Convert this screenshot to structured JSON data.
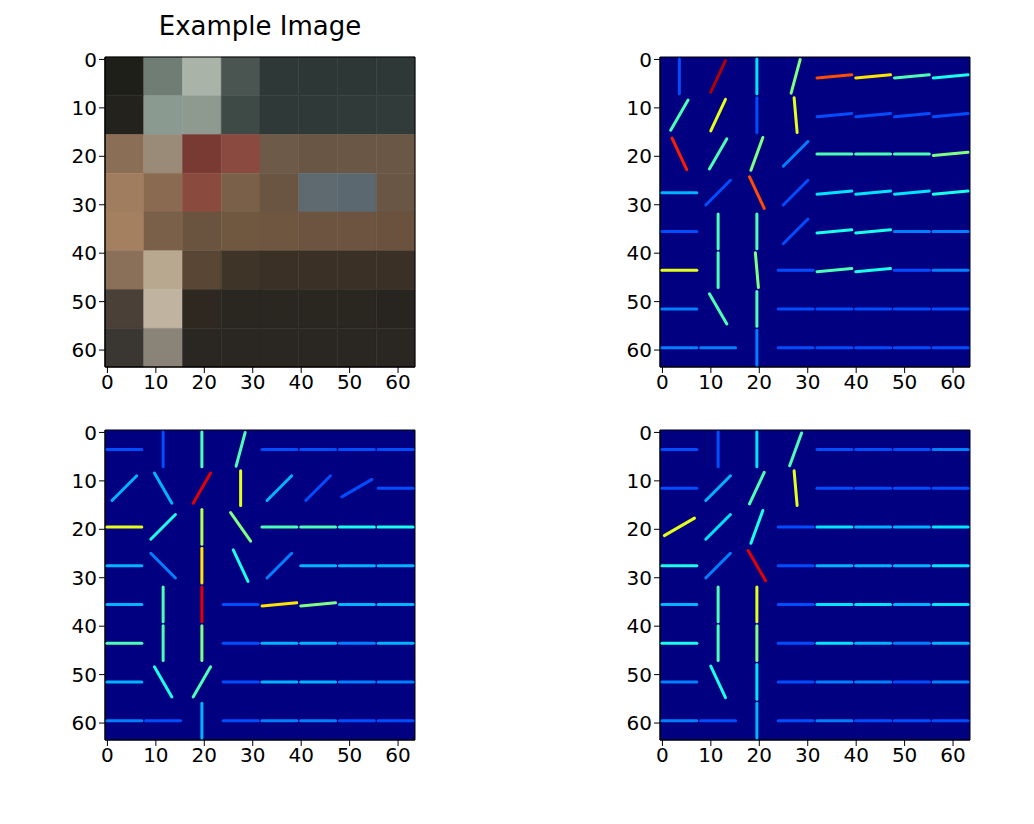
{
  "chart_data": [
    {
      "type": "image",
      "title": "Example Image",
      "xlim": [
        -0.5,
        63.5
      ],
      "ylim": [
        63.5,
        -0.5
      ],
      "xticks": [
        0,
        10,
        20,
        30,
        40,
        50,
        60
      ],
      "yticks": [
        0,
        10,
        20,
        30,
        40,
        50,
        60
      ],
      "pixels": [
        [
          "#1f1f1a",
          "#6f7d74",
          "#a9b3a8",
          "#4a5450",
          "#2e3836",
          "#2d3735",
          "#2d3735",
          "#2e3836"
        ],
        [
          "#24221d",
          "#8a9a90",
          "#8e9a90",
          "#3e4a46",
          "#2f3937",
          "#2f3937",
          "#303a38",
          "#313b39"
        ],
        [
          "#8a6e55",
          "#9a8a78",
          "#7a3a34",
          "#8a4a40",
          "#6e5a48",
          "#6a5645",
          "#6b5746",
          "#6b5746"
        ],
        [
          "#a07d5e",
          "#8a6a50",
          "#8a4a3e",
          "#7a6048",
          "#6a5442",
          "#5e6a70",
          "#5c6870",
          "#6a5644"
        ],
        [
          "#a48060",
          "#7a6048",
          "#6a5440",
          "#705840",
          "#6e5640",
          "#6c5440",
          "#6c5440",
          "#6a523e"
        ],
        [
          "#8a7058",
          "#b8a890",
          "#5a4634",
          "#3e3428",
          "#3a3026",
          "#3a3026",
          "#3a3026",
          "#3a3026"
        ],
        [
          "#4a4038",
          "#c0b4a0",
          "#2e2820",
          "#2a2620",
          "#2a2620",
          "#2a2620",
          "#2a2620",
          "#282420"
        ],
        [
          "#3a3632",
          "#8a8478",
          "#2a2622",
          "#2a2622",
          "#2a2622",
          "#2a2622",
          "#2a2622",
          "#2a2622"
        ]
      ]
    },
    {
      "type": "hog",
      "xlim": [
        -0.5,
        63.5
      ],
      "ylim": [
        63.5,
        -0.5
      ],
      "xticks": [
        0,
        10,
        20,
        30,
        40,
        50,
        60
      ],
      "yticks": [
        0,
        10,
        20,
        30,
        40,
        50,
        60
      ],
      "angles": [
        [
          90,
          65,
          90,
          75,
          5,
          5,
          5,
          5
        ],
        [
          60,
          65,
          90,
          95,
          5,
          5,
          5,
          5
        ],
        [
          115,
          60,
          70,
          45,
          0,
          0,
          0,
          5
        ],
        [
          0,
          45,
          115,
          45,
          5,
          5,
          5,
          5
        ],
        [
          0,
          90,
          90,
          45,
          5,
          5,
          0,
          0
        ],
        [
          0,
          90,
          95,
          0,
          5,
          5,
          0,
          0
        ],
        [
          0,
          120,
          90,
          0,
          0,
          0,
          0,
          0
        ],
        [
          0,
          0,
          90,
          0,
          0,
          0,
          0,
          0
        ]
      ],
      "magnitudes": [
        [
          0.2,
          0.95,
          0.35,
          0.5,
          0.8,
          0.65,
          0.45,
          0.4
        ],
        [
          0.45,
          0.6,
          0.2,
          0.6,
          0.2,
          0.2,
          0.2,
          0.2
        ],
        [
          0.85,
          0.45,
          0.5,
          0.25,
          0.45,
          0.45,
          0.45,
          0.5
        ],
        [
          0.3,
          0.2,
          0.8,
          0.2,
          0.35,
          0.35,
          0.35,
          0.4
        ],
        [
          0.2,
          0.45,
          0.45,
          0.2,
          0.4,
          0.4,
          0.25,
          0.25
        ],
        [
          0.6,
          0.45,
          0.5,
          0.2,
          0.45,
          0.4,
          0.2,
          0.25
        ],
        [
          0.25,
          0.45,
          0.45,
          0.2,
          0.2,
          0.2,
          0.2,
          0.2
        ],
        [
          0.25,
          0.25,
          0.25,
          0.2,
          0.2,
          0.2,
          0.2,
          0.2
        ]
      ]
    },
    {
      "type": "hog",
      "xlim": [
        -0.5,
        63.5
      ],
      "ylim": [
        63.5,
        -0.5
      ],
      "xticks": [
        0,
        10,
        20,
        30,
        40,
        50,
        60
      ],
      "yticks": [
        0,
        10,
        20,
        30,
        40,
        50,
        60
      ],
      "angles": [
        [
          0,
          90,
          90,
          75,
          0,
          0,
          0,
          0
        ],
        [
          45,
          120,
          60,
          90,
          45,
          45,
          30,
          0
        ],
        [
          0,
          45,
          90,
          125,
          0,
          0,
          0,
          0
        ],
        [
          0,
          135,
          90,
          115,
          45,
          0,
          0,
          0
        ],
        [
          0,
          90,
          90,
          0,
          5,
          5,
          0,
          0
        ],
        [
          0,
          90,
          90,
          0,
          0,
          0,
          0,
          0
        ],
        [
          0,
          120,
          60,
          0,
          0,
          0,
          0,
          0
        ],
        [
          0,
          0,
          90,
          0,
          0,
          0,
          0,
          0
        ]
      ],
      "magnitudes": [
        [
          0.2,
          0.2,
          0.45,
          0.45,
          0.2,
          0.2,
          0.2,
          0.2
        ],
        [
          0.3,
          0.3,
          0.9,
          0.6,
          0.3,
          0.2,
          0.2,
          0.2
        ],
        [
          0.6,
          0.4,
          0.55,
          0.5,
          0.45,
          0.45,
          0.4,
          0.4
        ],
        [
          0.3,
          0.25,
          0.65,
          0.4,
          0.25,
          0.3,
          0.3,
          0.3
        ],
        [
          0.3,
          0.45,
          0.9,
          0.2,
          0.65,
          0.5,
          0.3,
          0.3
        ],
        [
          0.45,
          0.45,
          0.5,
          0.2,
          0.3,
          0.3,
          0.25,
          0.3
        ],
        [
          0.3,
          0.4,
          0.45,
          0.2,
          0.3,
          0.3,
          0.25,
          0.25
        ],
        [
          0.25,
          0.2,
          0.3,
          0.2,
          0.25,
          0.25,
          0.2,
          0.2
        ]
      ]
    },
    {
      "type": "hog",
      "xlim": [
        -0.5,
        63.5
      ],
      "ylim": [
        63.5,
        -0.5
      ],
      "xticks": [
        0,
        10,
        20,
        30,
        40,
        50,
        60
      ],
      "yticks": [
        0,
        10,
        20,
        30,
        40,
        50,
        60
      ],
      "angles": [
        [
          0,
          90,
          90,
          70,
          0,
          0,
          0,
          0
        ],
        [
          0,
          45,
          65,
          95,
          0,
          0,
          0,
          0
        ],
        [
          30,
          45,
          70,
          0,
          0,
          0,
          0,
          0
        ],
        [
          0,
          45,
          120,
          0,
          0,
          0,
          0,
          0
        ],
        [
          0,
          90,
          90,
          0,
          0,
          0,
          0,
          0
        ],
        [
          0,
          90,
          90,
          0,
          0,
          0,
          0,
          0
        ],
        [
          0,
          115,
          90,
          0,
          0,
          0,
          0,
          0
        ],
        [
          0,
          0,
          90,
          0,
          0,
          0,
          0,
          0
        ]
      ],
      "magnitudes": [
        [
          0.2,
          0.2,
          0.35,
          0.45,
          0.2,
          0.2,
          0.2,
          0.25
        ],
        [
          0.2,
          0.3,
          0.45,
          0.6,
          0.2,
          0.2,
          0.2,
          0.2
        ],
        [
          0.6,
          0.35,
          0.4,
          0.2,
          0.35,
          0.3,
          0.3,
          0.35
        ],
        [
          0.4,
          0.25,
          0.9,
          0.2,
          0.3,
          0.3,
          0.3,
          0.35
        ],
        [
          0.3,
          0.45,
          0.6,
          0.2,
          0.35,
          0.35,
          0.3,
          0.35
        ],
        [
          0.4,
          0.45,
          0.5,
          0.2,
          0.35,
          0.3,
          0.25,
          0.3
        ],
        [
          0.25,
          0.4,
          0.35,
          0.2,
          0.25,
          0.25,
          0.2,
          0.25
        ],
        [
          0.25,
          0.2,
          0.3,
          0.2,
          0.25,
          0.2,
          0.2,
          0.2
        ]
      ]
    }
  ]
}
